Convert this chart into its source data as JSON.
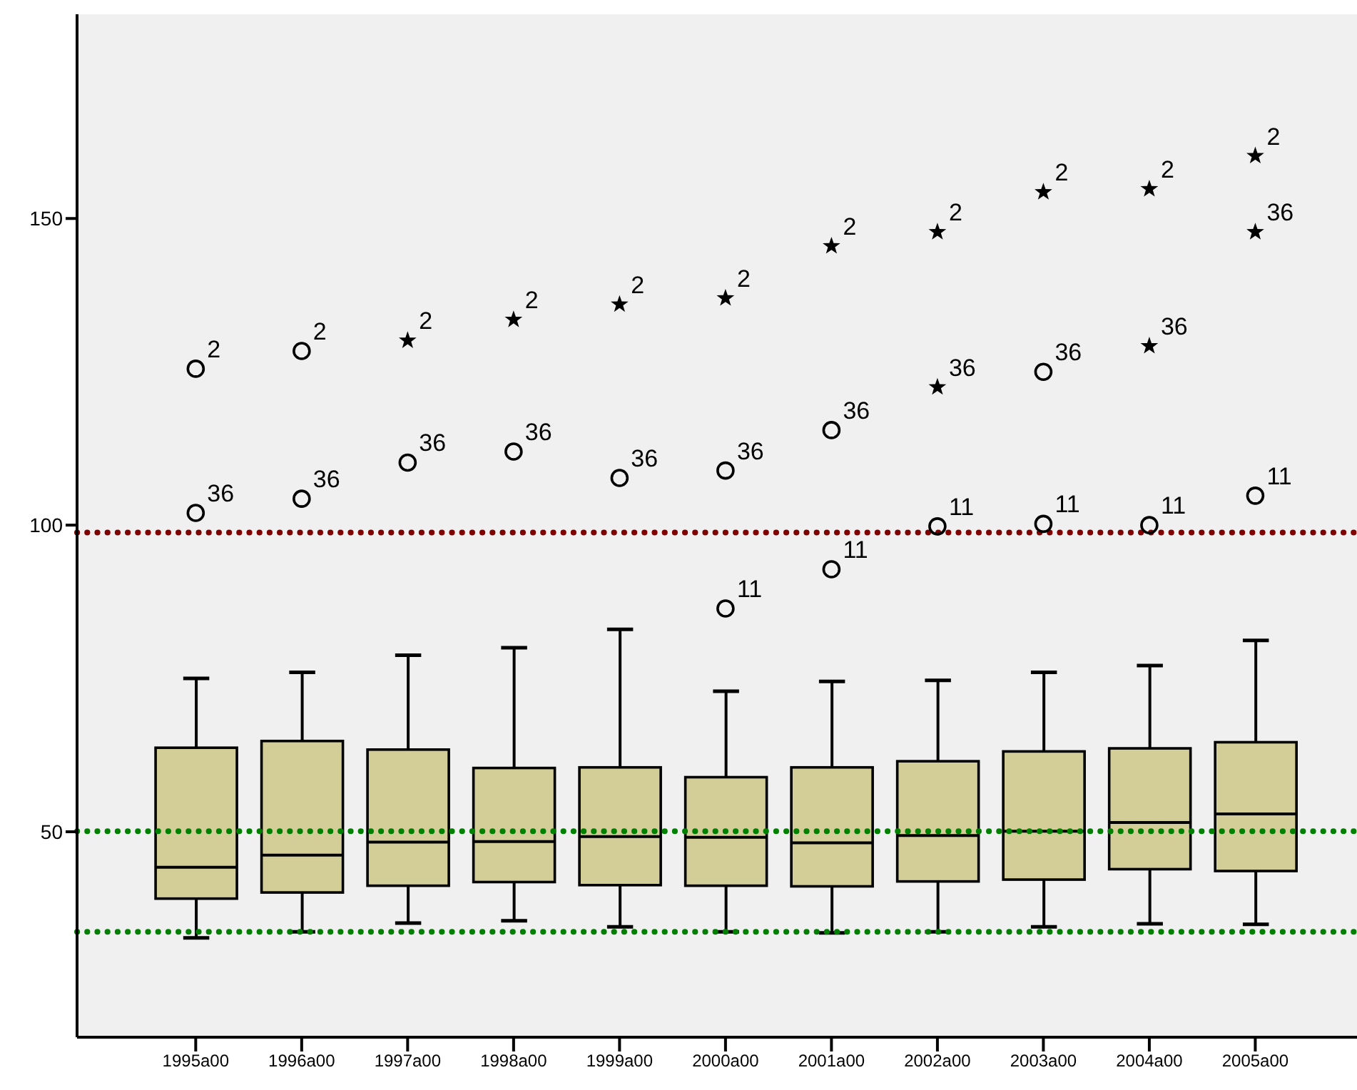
{
  "chart_data": {
    "type": "box",
    "categories": [
      "1995a00",
      "1996a00",
      "1997a00",
      "1998a00",
      "1999a00",
      "2000a00",
      "2001a00",
      "2002a00",
      "2003a00",
      "2004a00",
      "2005a00"
    ],
    "ylim": [
      16.5,
      183.3
    ],
    "yticks": [
      50,
      100,
      150
    ],
    "grid": false,
    "series": [
      {
        "color": "#d3ce97",
        "boxes": [
          {
            "low": 32.7,
            "q1": 39.1,
            "median": 44.2,
            "q3": 63.7,
            "high": 75.0
          },
          {
            "low": 33.7,
            "q1": 40.1,
            "median": 46.2,
            "q3": 64.8,
            "high": 76.0
          },
          {
            "low": 35.1,
            "q1": 41.2,
            "median": 48.3,
            "q3": 63.4,
            "high": 78.8
          },
          {
            "low": 35.5,
            "q1": 41.8,
            "median": 48.4,
            "q3": 60.4,
            "high": 80.0
          },
          {
            "low": 34.5,
            "q1": 41.3,
            "median": 49.2,
            "q3": 60.5,
            "high": 83.0
          },
          {
            "low": 33.7,
            "q1": 41.2,
            "median": 49.1,
            "q3": 58.9,
            "high": 72.9
          },
          {
            "low": 33.5,
            "q1": 41.1,
            "median": 48.2,
            "q3": 60.5,
            "high": 74.5
          },
          {
            "low": 33.7,
            "q1": 41.9,
            "median": 49.4,
            "q3": 61.5,
            "high": 74.7
          },
          {
            "low": 34.5,
            "q1": 42.2,
            "median": 50.1,
            "q3": 63.1,
            "high": 76.0
          },
          {
            "low": 35.0,
            "q1": 43.9,
            "median": 51.5,
            "q3": 63.6,
            "high": 77.1
          },
          {
            "low": 34.9,
            "q1": 43.6,
            "median": 52.9,
            "q3": 64.6,
            "high": 81.2
          }
        ]
      },
      {
        "type": "scatter",
        "marker": "circle",
        "color": "#000000",
        "x": [
          "1995a00",
          "1995a00",
          "1996a00",
          "1996a00",
          "1997a00",
          "1998a00",
          "1999a00",
          "2000a00",
          "2000a00",
          "2001a00",
          "2001a00",
          "2002a00",
          "2003a00",
          "2003a00",
          "2004a00",
          "2005a00"
        ],
        "values": [
          125.5,
          102.0,
          128.4,
          104.3,
          110.2,
          112.0,
          107.7,
          108.9,
          86.4,
          115.5,
          92.8,
          99.8,
          125.0,
          100.2,
          100.0,
          104.8
        ]
      },
      {
        "type": "scatter",
        "marker": "star",
        "color": "#000000",
        "x": [
          "1997a00",
          "1998a00",
          "1999a00",
          "2000a00",
          "2001a00",
          "2002a00",
          "2002a00",
          "2003a00",
          "2004a00",
          "2004a00",
          "2005a00",
          "2005a00"
        ],
        "values": [
          130.1,
          133.5,
          136.0,
          137.0,
          145.5,
          147.8,
          122.5,
          154.3,
          154.8,
          129.2,
          160.2,
          147.8
        ]
      }
    ],
    "ref_lines": [
      {
        "axis": "y",
        "value": 98.8,
        "color": "#800000",
        "line_style": "dotted"
      },
      {
        "axis": "y",
        "value": 50.1,
        "color": "#008000",
        "line_style": "dotted"
      },
      {
        "axis": "y",
        "value": 33.7,
        "color": "#008000",
        "line_style": "dotted"
      }
    ],
    "annotations": [
      {
        "text": "2",
        "x": "1995a00",
        "y": 125.5
      },
      {
        "text": "36",
        "x": "1995a00",
        "y": 102.0
      },
      {
        "text": "2",
        "x": "1996a00",
        "y": 128.4
      },
      {
        "text": "36",
        "x": "1996a00",
        "y": 104.3
      },
      {
        "text": "2",
        "x": "1997a00",
        "y": 130.1
      },
      {
        "text": "36",
        "x": "1997a00",
        "y": 110.2
      },
      {
        "text": "2",
        "x": "1998a00",
        "y": 133.5
      },
      {
        "text": "36",
        "x": "1998a00",
        "y": 112.0
      },
      {
        "text": "2",
        "x": "1999a00",
        "y": 136.0
      },
      {
        "text": "36",
        "x": "1999a00",
        "y": 107.7
      },
      {
        "text": "2",
        "x": "2000a00",
        "y": 137.0
      },
      {
        "text": "36",
        "x": "2000a00",
        "y": 108.9
      },
      {
        "text": "11",
        "x": "2000a00",
        "y": 86.4
      },
      {
        "text": "2",
        "x": "2001a00",
        "y": 145.5
      },
      {
        "text": "36",
        "x": "2001a00",
        "y": 115.5
      },
      {
        "text": "11",
        "x": "2001a00",
        "y": 92.8
      },
      {
        "text": "2",
        "x": "2002a00",
        "y": 147.8
      },
      {
        "text": "36",
        "x": "2002a00",
        "y": 122.5
      },
      {
        "text": "11",
        "x": "2002a00",
        "y": 99.8
      },
      {
        "text": "2",
        "x": "2003a00",
        "y": 154.3
      },
      {
        "text": "36",
        "x": "2003a00",
        "y": 125.0
      },
      {
        "text": "11",
        "x": "2003a00",
        "y": 100.2
      },
      {
        "text": "2",
        "x": "2004a00",
        "y": 154.8
      },
      {
        "text": "36",
        "x": "2004a00",
        "y": 129.2
      },
      {
        "text": "11",
        "x": "2004a00",
        "y": 100.0
      },
      {
        "text": "2",
        "x": "2005a00",
        "y": 160.2
      },
      {
        "text": "36",
        "x": "2005a00",
        "y": 147.8
      },
      {
        "text": "11",
        "x": "2005a00",
        "y": 104.8
      }
    ]
  }
}
